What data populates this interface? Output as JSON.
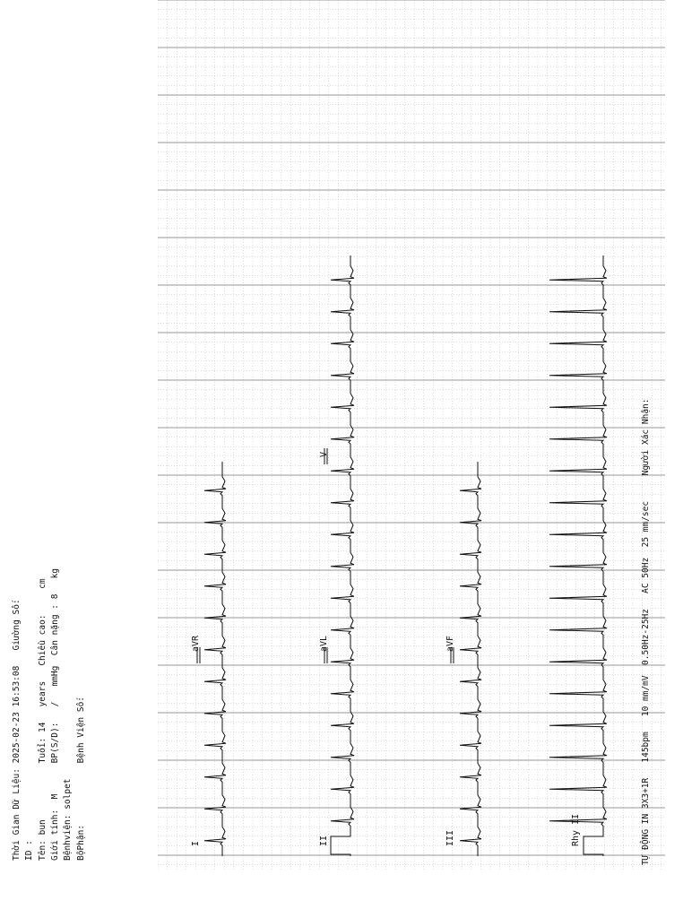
{
  "header": {
    "col1": [
      "Thời Gian Dữ Liệu: 2025-02-23 16:53:08   Giường Số:",
      "ID :",
      "Tên: bun           Tuổi: 14   years   Chiều cao:     cm",
      "Giới tính:  M      BP(S/D):   /   mmHg  Cân nặng : 8   kg",
      "Bệnhviện: solpet",
      "BộPhận:            Bệnh Viện Số:"
    ]
  },
  "leads": {
    "row1": [
      "I",
      "aVR"
    ],
    "row2": [
      "II",
      "aVL",
      "V"
    ],
    "row3": [
      "III",
      "aVF"
    ],
    "rhythm": "Rhy II"
  },
  "footer": "TỰ ĐỘNG IN 3X3+1R   145bpm   10 mm/mV  0.50Hz-25Hz   AC 50Hz  25 mm/sec     Người Xác Nhận:",
  "colors": {
    "grid_minor": "#b8b8b8",
    "grid_major": "#7a7a7a",
    "trace": "#111111"
  }
}
